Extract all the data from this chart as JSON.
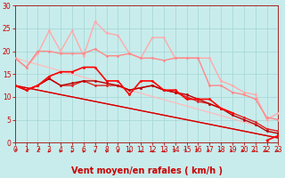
{
  "background_color": "#c8ecec",
  "grid_color": "#a8d8d8",
  "x_values": [
    0,
    1,
    2,
    3,
    4,
    5,
    6,
    7,
    8,
    9,
    10,
    11,
    12,
    13,
    14,
    15,
    16,
    17,
    18,
    19,
    20,
    21,
    22,
    23
  ],
  "xlabel": "Vent moyen/en rafales ( km/h )",
  "ylim": [
    0,
    30
  ],
  "xlim": [
    0,
    23
  ],
  "yticks": [
    0,
    5,
    10,
    15,
    20,
    25,
    30
  ],
  "lines": [
    {
      "name": "straight_light1",
      "y": [
        18.5,
        17.8,
        17.1,
        16.4,
        15.7,
        15.0,
        14.3,
        13.6,
        12.9,
        12.2,
        11.5,
        10.8,
        10.1,
        9.4,
        8.7,
        8.0,
        7.3,
        6.6,
        5.9,
        5.2,
        4.5,
        3.8,
        3.1,
        2.4
      ],
      "color": "#ffbbbb",
      "lw": 0.9,
      "marker": null,
      "ms": 0,
      "zorder": 2
    },
    {
      "name": "straight_light2",
      "y": [
        12.5,
        12.0,
        11.5,
        11.0,
        10.5,
        10.0,
        9.5,
        9.0,
        8.5,
        8.0,
        7.5,
        7.0,
        6.5,
        6.0,
        5.5,
        5.0,
        4.5,
        4.0,
        3.5,
        3.0,
        2.5,
        2.0,
        1.5,
        1.0
      ],
      "color": "#ff9999",
      "lw": 0.9,
      "marker": null,
      "ms": 0,
      "zorder": 2
    },
    {
      "name": "straight_dark1",
      "y": [
        12.5,
        12.0,
        11.5,
        11.0,
        10.5,
        10.0,
        9.5,
        9.0,
        8.5,
        8.0,
        7.5,
        7.0,
        6.5,
        6.0,
        5.5,
        5.0,
        4.5,
        4.0,
        3.5,
        3.0,
        2.5,
        2.0,
        1.5,
        1.0
      ],
      "color": "#ff4444",
      "lw": 0.9,
      "marker": null,
      "ms": 0,
      "zorder": 2
    },
    {
      "name": "straight_dark2",
      "y": [
        12.5,
        12.0,
        11.5,
        11.0,
        10.5,
        10.0,
        9.5,
        9.0,
        8.5,
        8.0,
        7.5,
        7.0,
        6.5,
        6.0,
        5.5,
        5.0,
        4.5,
        4.0,
        3.5,
        3.0,
        2.5,
        2.0,
        1.5,
        1.0
      ],
      "color": "#cc0000",
      "lw": 0.9,
      "marker": null,
      "ms": 0,
      "zorder": 2
    },
    {
      "name": "wavy_lightest",
      "y": [
        18.5,
        16.5,
        19.5,
        24.5,
        20.0,
        24.5,
        19.0,
        26.5,
        24.0,
        23.5,
        19.5,
        18.5,
        23.0,
        23.0,
        18.5,
        18.5,
        18.5,
        18.5,
        13.5,
        12.5,
        11.0,
        10.5,
        5.0,
        6.5
      ],
      "color": "#ffaaaa",
      "lw": 1.0,
      "marker": "o",
      "ms": 2.0,
      "zorder": 3
    },
    {
      "name": "wavy_light",
      "y": [
        18.5,
        16.5,
        20.0,
        20.0,
        19.5,
        19.5,
        19.5,
        20.5,
        19.0,
        19.0,
        19.5,
        18.5,
        18.5,
        18.0,
        18.5,
        18.5,
        18.5,
        12.5,
        12.5,
        11.0,
        10.5,
        9.5,
        5.5,
        5.0
      ],
      "color": "#ff8888",
      "lw": 1.0,
      "marker": "o",
      "ms": 2.0,
      "zorder": 3
    },
    {
      "name": "wavy_dark_main",
      "y": [
        12.5,
        11.5,
        12.5,
        14.5,
        15.5,
        15.5,
        16.5,
        16.5,
        13.5,
        13.5,
        10.5,
        13.5,
        13.5,
        11.5,
        11.5,
        9.5,
        9.5,
        9.5,
        7.5,
        6.5,
        null,
        null,
        0.5,
        1.5
      ],
      "color": "#ff0000",
      "lw": 1.2,
      "marker": "o",
      "ms": 2.0,
      "zorder": 5
    },
    {
      "name": "wavy_dark2",
      "y": [
        12.5,
        11.5,
        12.5,
        14.0,
        12.5,
        12.5,
        13.5,
        12.5,
        12.5,
        12.5,
        11.5,
        12.0,
        12.5,
        11.5,
        11.0,
        10.0,
        9.0,
        8.5,
        7.5,
        6.5,
        5.5,
        4.5,
        3.0,
        2.5
      ],
      "color": "#dd2222",
      "lw": 1.0,
      "marker": "o",
      "ms": 2.0,
      "zorder": 4
    },
    {
      "name": "wavy_dark3",
      "y": [
        12.5,
        11.5,
        12.5,
        14.0,
        12.5,
        13.0,
        13.5,
        13.5,
        13.0,
        12.5,
        11.5,
        12.0,
        12.5,
        11.5,
        11.0,
        10.5,
        9.5,
        8.5,
        7.5,
        6.0,
        5.0,
        4.0,
        2.5,
        2.0
      ],
      "color": "#bb0000",
      "lw": 1.0,
      "marker": "o",
      "ms": 2.0,
      "zorder": 4
    }
  ],
  "wind_angles": [
    225,
    220,
    215,
    210,
    205,
    200,
    195,
    180,
    175,
    170,
    165,
    160,
    155,
    150,
    145,
    135,
    130,
    125,
    90,
    90,
    90,
    90,
    90,
    90
  ],
  "tick_fontsize": 5.5,
  "xlabel_fontsize": 7.0
}
